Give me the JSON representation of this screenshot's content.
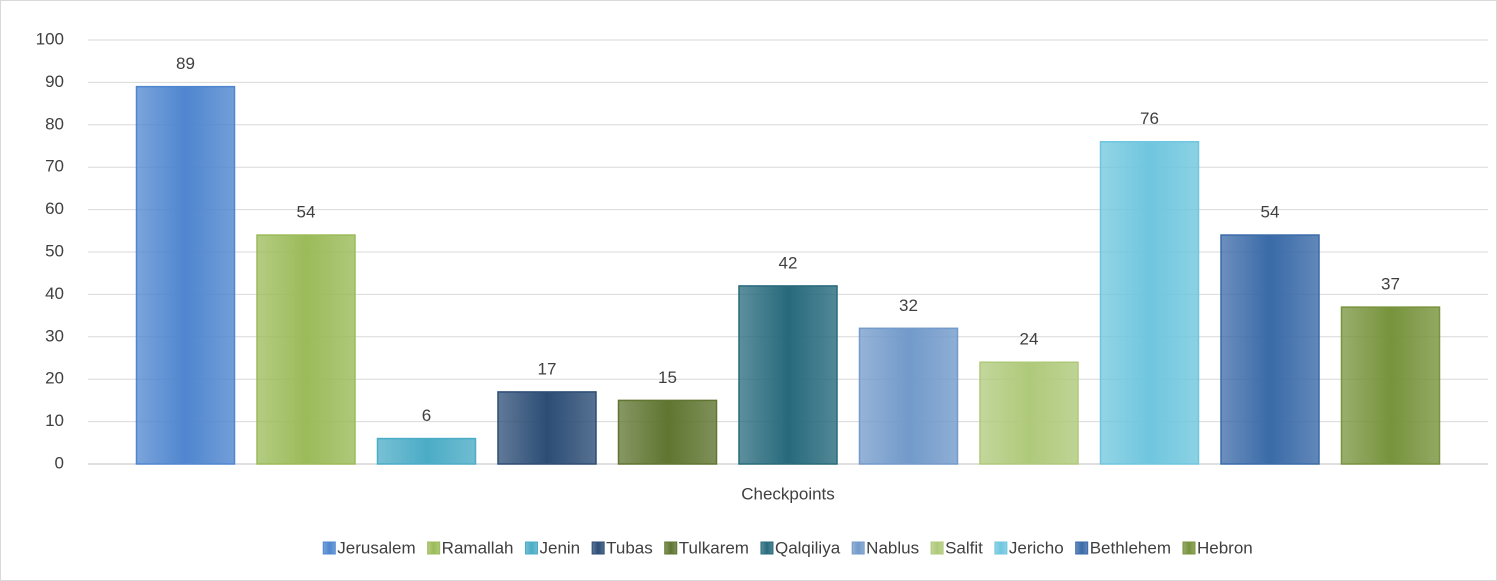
{
  "chart_data": {
    "type": "bar",
    "x_label": "Checkpoints",
    "categories": [
      "Checkpoints"
    ],
    "series": [
      {
        "name": "Jerusalem",
        "color": "#4f86cf",
        "values": [
          89
        ]
      },
      {
        "name": "Ramallah",
        "color": "#9bbb59",
        "values": [
          54
        ]
      },
      {
        "name": "Jenin",
        "color": "#4bacc6",
        "values": [
          6
        ]
      },
      {
        "name": "Tubas",
        "color": "#2c4d75",
        "values": [
          17
        ]
      },
      {
        "name": "Tulkarem",
        "color": "#5f7530",
        "values": [
          15
        ]
      },
      {
        "name": "Qalqiliya",
        "color": "#276a7c",
        "values": [
          42
        ]
      },
      {
        "name": "Nablus",
        "color": "#729aca",
        "values": [
          32
        ]
      },
      {
        "name": "Salfit",
        "color": "#afc97a",
        "values": [
          24
        ]
      },
      {
        "name": "Jericho",
        "color": "#6fc6de",
        "values": [
          76
        ]
      },
      {
        "name": "Bethlehem",
        "color": "#3a6aa8",
        "values": [
          54
        ]
      },
      {
        "name": "Hebron",
        "color": "#77933c",
        "values": [
          37
        ]
      }
    ],
    "ylim": [
      0,
      100
    ],
    "yticks": [
      0,
      10,
      20,
      30,
      40,
      50,
      60,
      70,
      80,
      90,
      100
    ],
    "grid": true,
    "legend": "bottom",
    "data_labels": true
  }
}
